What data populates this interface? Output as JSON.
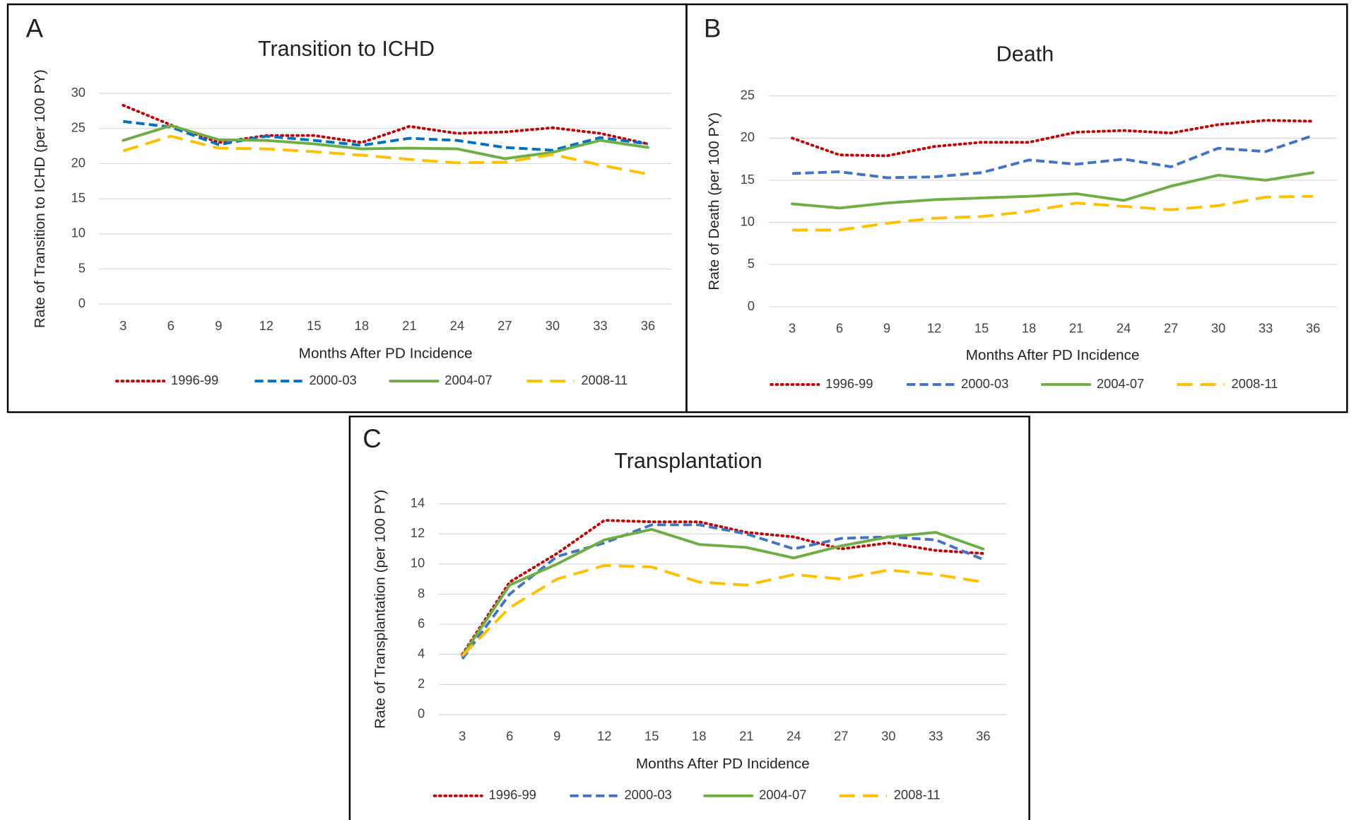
{
  "chart_data": [
    {
      "type": "line",
      "panel": "A",
      "title": "Transition to ICHD",
      "x_label": "Months After PD Incidence",
      "y_label": "Rate of Transition to ICHD (per 100 PY)",
      "categories": [
        "3",
        "6",
        "9",
        "12",
        "15",
        "18",
        "21",
        "24",
        "27",
        "30",
        "33",
        "36"
      ],
      "ylim": [
        0,
        30
      ],
      "yticks": [
        0,
        5,
        10,
        15,
        20,
        25,
        30
      ],
      "grid": true,
      "legend": "bottom",
      "series": [
        {
          "name": "1996-99",
          "color": "#c00000",
          "line_style": "dotted",
          "values": [
            28.3,
            25.5,
            23.0,
            24.0,
            24.0,
            23.0,
            25.3,
            24.3,
            24.5,
            25.1,
            24.3,
            22.8
          ]
        },
        {
          "name": "2000-03",
          "color": "#0070c0",
          "line_style": "dashed",
          "values": [
            26.0,
            25.2,
            22.7,
            23.9,
            23.3,
            22.6,
            23.6,
            23.3,
            22.3,
            21.9,
            23.7,
            22.8
          ]
        },
        {
          "name": "2004-07",
          "color": "#70ad47",
          "line_style": "solid",
          "values": [
            23.3,
            25.4,
            23.4,
            23.3,
            22.8,
            22.1,
            22.2,
            22.1,
            20.7,
            21.6,
            23.3,
            22.3
          ]
        },
        {
          "name": "2008-11",
          "color": "#ffc000",
          "line_style": "long-dash",
          "values": [
            21.8,
            23.9,
            22.2,
            22.1,
            21.7,
            21.2,
            20.6,
            20.1,
            20.2,
            21.3,
            19.8,
            18.5
          ]
        }
      ]
    },
    {
      "type": "line",
      "panel": "B",
      "title": "Death",
      "x_label": "Months After PD Incidence",
      "y_label": "Rate of Death (per 100 PY)",
      "categories": [
        "3",
        "6",
        "9",
        "12",
        "15",
        "18",
        "21",
        "24",
        "27",
        "30",
        "33",
        "36"
      ],
      "ylim": [
        0,
        25
      ],
      "yticks": [
        0,
        5,
        10,
        15,
        20,
        25
      ],
      "grid": true,
      "legend": "bottom",
      "series": [
        {
          "name": "1996-99",
          "color": "#c00000",
          "line_style": "dotted",
          "values": [
            20.0,
            18.0,
            17.9,
            19.0,
            19.5,
            19.5,
            20.7,
            20.9,
            20.6,
            21.6,
            22.1,
            22.0
          ]
        },
        {
          "name": "2000-03",
          "color": "#4472c4",
          "line_style": "dashed",
          "values": [
            15.8,
            16.0,
            15.3,
            15.4,
            15.9,
            17.4,
            16.9,
            17.5,
            16.6,
            18.8,
            18.4,
            20.3
          ]
        },
        {
          "name": "2004-07",
          "color": "#70ad47",
          "line_style": "solid",
          "values": [
            12.2,
            11.7,
            12.3,
            12.7,
            12.9,
            13.1,
            13.4,
            12.6,
            14.3,
            15.6,
            15.0,
            15.9
          ]
        },
        {
          "name": "2008-11",
          "color": "#ffc000",
          "line_style": "long-dash",
          "values": [
            9.1,
            9.1,
            9.9,
            10.5,
            10.7,
            11.3,
            12.3,
            11.9,
            11.5,
            12.0,
            13.0,
            13.1
          ]
        }
      ]
    },
    {
      "type": "line",
      "panel": "C",
      "title": "Transplantation",
      "x_label": "Months After PD Incidence",
      "y_label": "Rate of Transplantation (per 100 PY)",
      "categories": [
        "3",
        "6",
        "9",
        "12",
        "15",
        "18",
        "21",
        "24",
        "27",
        "30",
        "33",
        "36"
      ],
      "ylim": [
        0,
        14
      ],
      "yticks": [
        0,
        2,
        4,
        6,
        8,
        10,
        12,
        14
      ],
      "grid": true,
      "legend": "bottom",
      "series": [
        {
          "name": "1996-99",
          "color": "#c00000",
          "line_style": "dotted",
          "values": [
            4.0,
            8.8,
            10.7,
            12.9,
            12.8,
            12.8,
            12.1,
            11.8,
            11.0,
            11.4,
            10.9,
            10.7
          ]
        },
        {
          "name": "2000-03",
          "color": "#4472c4",
          "line_style": "dashed",
          "values": [
            3.7,
            8.0,
            10.5,
            11.4,
            12.6,
            12.6,
            12.0,
            11.0,
            11.7,
            11.8,
            11.6,
            10.3
          ]
        },
        {
          "name": "2004-07",
          "color": "#70ad47",
          "line_style": "solid",
          "values": [
            3.9,
            8.6,
            10.0,
            11.6,
            12.3,
            11.3,
            11.1,
            10.4,
            11.2,
            11.8,
            12.1,
            11.0
          ]
        },
        {
          "name": "2008-11",
          "color": "#ffc000",
          "line_style": "long-dash",
          "values": [
            3.9,
            7.1,
            9.0,
            9.9,
            9.8,
            8.8,
            8.6,
            9.3,
            9.0,
            9.6,
            9.3,
            8.8
          ]
        }
      ]
    }
  ]
}
